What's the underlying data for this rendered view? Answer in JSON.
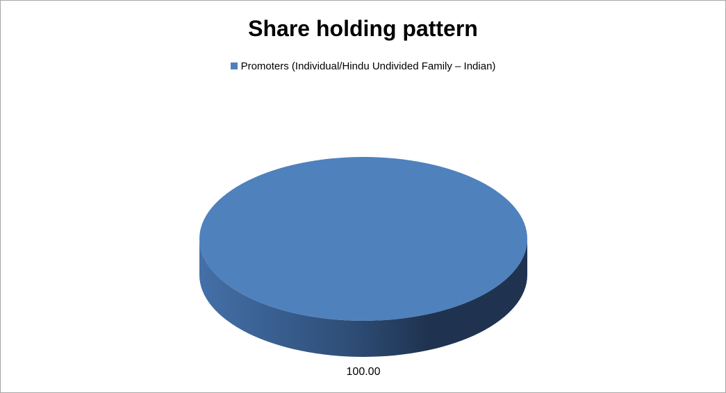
{
  "chart_data": {
    "type": "pie",
    "title": "Share holding pattern",
    "categories": [
      "Promoters (Individual/Hindu Undivided Family – Indian)"
    ],
    "values": [
      100.0
    ],
    "data_labels": [
      "100.00"
    ],
    "legend_position": "top",
    "three_d": true,
    "colors": [
      "#4f81bd"
    ]
  }
}
